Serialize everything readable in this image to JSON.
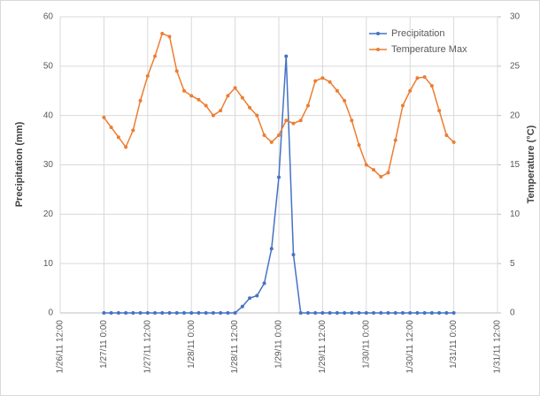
{
  "chart_data": {
    "type": "line",
    "y_label": "Precipitation (mm)",
    "y2_label": "Temperature (°C)",
    "x": [
      "1/27/11 0:00",
      "1/27/11 2:00",
      "1/27/11 4:00",
      "1/27/11 6:00",
      "1/27/11 8:00",
      "1/27/11 10:00",
      "1/27/11 12:00",
      "1/27/11 14:00",
      "1/27/11 16:00",
      "1/27/11 18:00",
      "1/27/11 20:00",
      "1/27/11 22:00",
      "1/28/11 0:00",
      "1/28/11 2:00",
      "1/28/11 4:00",
      "1/28/11 6:00",
      "1/28/11 8:00",
      "1/28/11 10:00",
      "1/28/11 12:00",
      "1/28/11 14:00",
      "1/28/11 16:00",
      "1/28/11 18:00",
      "1/28/11 20:00",
      "1/28/11 22:00",
      "1/29/11 0:00",
      "1/29/11 2:00",
      "1/29/11 4:00",
      "1/29/11 6:00",
      "1/29/11 8:00",
      "1/29/11 10:00",
      "1/29/11 12:00",
      "1/29/11 14:00",
      "1/29/11 16:00",
      "1/29/11 18:00",
      "1/29/11 20:00",
      "1/29/11 22:00",
      "1/30/11 0:00",
      "1/30/11 2:00",
      "1/30/11 4:00",
      "1/30/11 6:00",
      "1/30/11 8:00",
      "1/30/11 10:00",
      "1/30/11 12:00",
      "1/30/11 14:00",
      "1/30/11 16:00",
      "1/30/11 18:00",
      "1/30/11 20:00",
      "1/30/11 22:00",
      "1/31/11 0:00"
    ],
    "series": [
      {
        "name": "Precipitation",
        "color": "#4472c4",
        "values": [
          0,
          0,
          0,
          0,
          0,
          0,
          0,
          0,
          0,
          0,
          0,
          0,
          0,
          0,
          0,
          0,
          0,
          0,
          0,
          1.3,
          3.0,
          3.5,
          6,
          13,
          27.5,
          52,
          11.8,
          0,
          0,
          0,
          0,
          0,
          0,
          0,
          0,
          0,
          0,
          0,
          0,
          0,
          0,
          0,
          0,
          0,
          0,
          0,
          0,
          0,
          0
        ]
      },
      {
        "name": "Temperature Max",
        "color": "#ed7d31",
        "axis": "y2",
        "values": [
          19.8,
          18.8,
          17.8,
          16.8,
          18.5,
          21.5,
          24.0,
          26.0,
          28.3,
          28.0,
          24.5,
          22.5,
          22.0,
          21.6,
          21.0,
          20.0,
          20.5,
          22.0,
          22.8,
          21.8,
          20.8,
          20.0,
          18.0,
          17.3,
          18.0,
          19.5,
          19.2,
          19.5,
          21.0,
          23.5,
          23.8,
          23.4,
          22.5,
          21.5,
          19.5,
          17.0,
          15.0,
          14.5,
          13.8,
          14.2,
          17.5,
          21.0,
          22.5,
          23.8,
          23.9,
          23.0,
          20.5,
          18.0,
          17.3
        ]
      }
    ],
    "xlim": [
      "1/26/11 12:00",
      "1/31/11 12:00"
    ],
    "xticks": [
      "1/26/11 12:00",
      "1/27/11 0:00",
      "1/27/11 12:00",
      "1/28/11 0:00",
      "1/28/11 12:00",
      "1/29/11 0:00",
      "1/29/11 12:00",
      "1/30/11 0:00",
      "1/30/11 12:00",
      "1/31/11 0:00",
      "1/31/11 12:00"
    ],
    "ylim": [
      0,
      60
    ],
    "yticks": [
      0,
      10,
      20,
      30,
      40,
      50,
      60
    ],
    "y2lim": [
      0,
      30
    ],
    "y2ticks": [
      0,
      5,
      10,
      15,
      20,
      25,
      30
    ],
    "grid": true,
    "legend": "top-right"
  }
}
